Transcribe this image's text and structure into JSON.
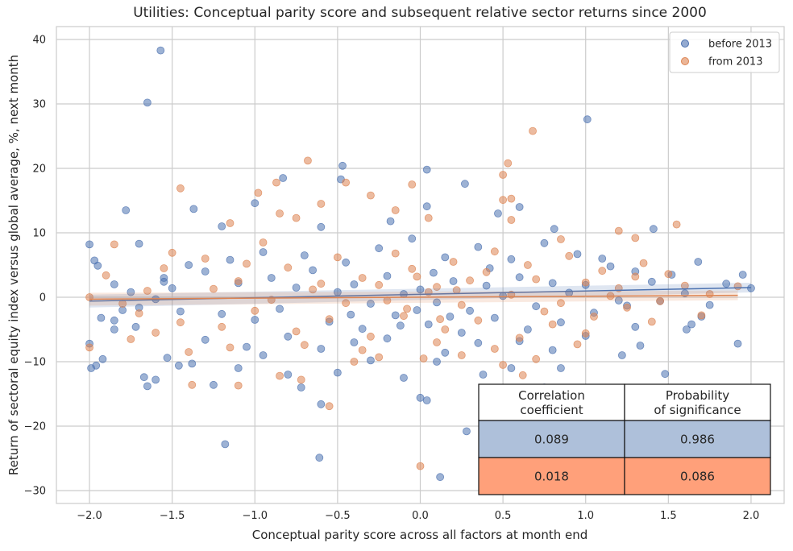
{
  "chart_data": {
    "type": "scatter",
    "title": "Utilities: Conceptual parity score and subsequent relative sector returns since 2000",
    "xlabel": "Conceptual parity score across all factors at month end",
    "ylabel": "Return of sectoral equity index versus global average, %, next month",
    "xlim": [
      -2.2,
      2.2
    ],
    "ylim": [
      -32,
      42
    ],
    "x_ticks": [
      -2.0,
      -1.5,
      -1.0,
      -0.5,
      0.0,
      0.5,
      1.0,
      1.5,
      2.0
    ],
    "x_tick_labels": [
      "−2.0",
      "−1.5",
      "−1.0",
      "−0.5",
      "0.0",
      "0.5",
      "1.0",
      "1.5",
      "2.0"
    ],
    "y_ticks": [
      -30,
      -20,
      -10,
      0,
      10,
      20,
      30,
      40
    ],
    "y_tick_labels": [
      "−30",
      "−20",
      "−10",
      "0",
      "10",
      "20",
      "30",
      "40"
    ],
    "grid": true,
    "legend_position": "top-right",
    "series": [
      {
        "name": "before 2013",
        "color": "#4c72b0",
        "regression": {
          "x": [
            -2.0,
            2.0
          ],
          "y": [
            -0.6,
            1.5
          ]
        },
        "points": [
          [
            -1.57,
            38.3
          ],
          [
            -1.65,
            30.2
          ],
          [
            1.01,
            27.6
          ],
          [
            -0.47,
            20.4
          ],
          [
            0.04,
            19.8
          ],
          [
            -0.48,
            18.3
          ],
          [
            -0.83,
            18.5
          ],
          [
            0.27,
            17.6
          ],
          [
            -1.78,
            13.5
          ],
          [
            -1.37,
            13.7
          ],
          [
            -1.0,
            14.6
          ],
          [
            0.04,
            14.1
          ],
          [
            0.47,
            13.0
          ],
          [
            0.6,
            14.0
          ],
          [
            -0.18,
            11.8
          ],
          [
            -1.2,
            11.0
          ],
          [
            0.81,
            10.6
          ],
          [
            -0.6,
            10.9
          ],
          [
            1.41,
            10.6
          ],
          [
            -2.0,
            8.2
          ],
          [
            -1.7,
            8.3
          ],
          [
            -1.97,
            5.7
          ],
          [
            -1.95,
            4.9
          ],
          [
            -1.85,
            2.0
          ],
          [
            -1.55,
            3.0
          ],
          [
            -1.8,
            -2.0
          ],
          [
            -1.93,
            -3.2
          ],
          [
            -2.0,
            -7.2
          ],
          [
            -1.99,
            -11.0
          ],
          [
            -1.96,
            -10.6
          ],
          [
            -1.92,
            -9.6
          ],
          [
            -1.85,
            -5.0
          ],
          [
            -1.72,
            -4.6
          ],
          [
            -1.67,
            -12.4
          ],
          [
            -1.65,
            -13.8
          ],
          [
            -1.6,
            -12.8
          ],
          [
            -1.53,
            -9.4
          ],
          [
            -1.46,
            -10.6
          ],
          [
            -1.38,
            -10.3
          ],
          [
            -1.25,
            -13.6
          ],
          [
            -1.18,
            -22.8
          ],
          [
            -1.1,
            -11.0
          ],
          [
            -0.95,
            -9.0
          ],
          [
            -0.8,
            -12.0
          ],
          [
            -0.72,
            -14.0
          ],
          [
            -0.6,
            -16.6
          ],
          [
            -0.61,
            -24.9
          ],
          [
            -0.5,
            -11.7
          ],
          [
            -0.3,
            -9.8
          ],
          [
            -0.1,
            -12.5
          ],
          [
            0.0,
            -15.6
          ],
          [
            0.04,
            -16.0
          ],
          [
            0.1,
            -10.0
          ],
          [
            0.12,
            -27.9
          ],
          [
            0.28,
            -20.8
          ],
          [
            0.38,
            -12.0
          ],
          [
            0.55,
            -11.0
          ],
          [
            0.75,
            -14.0
          ],
          [
            0.85,
            -11.0
          ],
          [
            1.48,
            -11.9
          ],
          [
            1.22,
            -9.0
          ],
          [
            1.33,
            -7.5
          ],
          [
            1.64,
            -4.2
          ],
          [
            1.7,
            -3.0
          ],
          [
            1.61,
            -5.0
          ],
          [
            1.92,
            -7.2
          ],
          [
            1.95,
            3.5
          ],
          [
            2.0,
            1.4
          ],
          [
            1.68,
            5.5
          ],
          [
            1.52,
            3.5
          ],
          [
            1.3,
            4.0
          ],
          [
            1.1,
            6.0
          ],
          [
            -1.4,
            5.0
          ],
          [
            -1.3,
            4.0
          ],
          [
            -1.1,
            2.2
          ],
          [
            -0.9,
            3.0
          ],
          [
            -0.75,
            1.5
          ],
          [
            -0.65,
            4.2
          ],
          [
            -0.5,
            0.8
          ],
          [
            -0.4,
            2.0
          ],
          [
            -0.3,
            -1.0
          ],
          [
            -0.2,
            3.3
          ],
          [
            -0.1,
            0.5
          ],
          [
            0.0,
            1.2
          ],
          [
            0.1,
            -0.8
          ],
          [
            0.2,
            2.5
          ],
          [
            0.3,
            -2.1
          ],
          [
            0.4,
            1.8
          ],
          [
            0.5,
            0.2
          ],
          [
            0.6,
            3.1
          ],
          [
            0.7,
            -1.4
          ],
          [
            0.8,
            2.2
          ],
          [
            0.9,
            0.7
          ],
          [
            1.0,
            1.9
          ],
          [
            1.2,
            -0.5
          ],
          [
            1.4,
            2.4
          ],
          [
            -1.6,
            -0.3
          ],
          [
            -1.5,
            1.4
          ],
          [
            -1.2,
            -2.6
          ],
          [
            -1.0,
            -3.5
          ],
          [
            -0.85,
            -1.8
          ],
          [
            -0.55,
            -3.8
          ],
          [
            -0.35,
            -4.9
          ],
          [
            -0.15,
            -2.8
          ],
          [
            0.05,
            -4.2
          ],
          [
            0.25,
            -5.5
          ],
          [
            0.45,
            -3.2
          ],
          [
            0.65,
            -5.0
          ],
          [
            0.85,
            -3.9
          ],
          [
            1.05,
            -2.4
          ],
          [
            1.25,
            -1.3
          ],
          [
            1.45,
            -0.6
          ],
          [
            -1.75,
            0.8
          ],
          [
            -1.45,
            -2.2
          ],
          [
            -1.15,
            5.8
          ],
          [
            -0.95,
            7.0
          ],
          [
            -0.7,
            6.5
          ],
          [
            -0.45,
            5.4
          ],
          [
            -0.25,
            7.6
          ],
          [
            0.15,
            6.2
          ],
          [
            0.35,
            7.8
          ],
          [
            0.55,
            5.9
          ],
          [
            0.75,
            8.4
          ],
          [
            0.95,
            6.7
          ],
          [
            1.15,
            4.8
          ],
          [
            -0.05,
            9.1
          ],
          [
            -1.3,
            -6.6
          ],
          [
            -1.05,
            -7.7
          ],
          [
            -0.8,
            -6.1
          ],
          [
            -0.6,
            -8.0
          ],
          [
            -0.4,
            -7.0
          ],
          [
            -0.2,
            -6.4
          ],
          [
            0.15,
            -8.6
          ],
          [
            0.35,
            -7.1
          ],
          [
            0.6,
            -6.8
          ],
          [
            0.8,
            -8.2
          ],
          [
            1.0,
            -6.0
          ],
          [
            1.3,
            -4.6
          ],
          [
            -1.85,
            -3.6
          ],
          [
            -1.7,
            -1.6
          ],
          [
            -1.55,
            2.4
          ],
          [
            1.6,
            0.6
          ],
          [
            1.75,
            -1.2
          ],
          [
            1.85,
            2.1
          ],
          [
            -0.02,
            -2.0
          ],
          [
            0.08,
            3.8
          ],
          [
            0.18,
            -3.0
          ],
          [
            -0.12,
            -4.4
          ],
          [
            0.42,
            4.5
          ],
          [
            -0.42,
            -2.7
          ]
        ]
      },
      {
        "name": "from 2013",
        "color": "#dd8452",
        "regression": {
          "x": [
            -2.0,
            1.92
          ],
          "y": [
            -0.3,
            0.3
          ]
        },
        "points": [
          [
            0.68,
            25.8
          ],
          [
            -0.68,
            21.2
          ],
          [
            0.53,
            20.8
          ],
          [
            0.5,
            19.0
          ],
          [
            -0.45,
            17.8
          ],
          [
            -0.05,
            17.5
          ],
          [
            -0.87,
            17.8
          ],
          [
            -1.45,
            16.9
          ],
          [
            -0.98,
            16.2
          ],
          [
            -0.3,
            15.8
          ],
          [
            0.5,
            15.1
          ],
          [
            0.55,
            15.3
          ],
          [
            -0.6,
            14.5
          ],
          [
            -0.85,
            13.0
          ],
          [
            -0.15,
            13.5
          ],
          [
            0.55,
            12.0
          ],
          [
            0.05,
            12.3
          ],
          [
            1.55,
            11.3
          ],
          [
            -0.75,
            12.3
          ],
          [
            -1.15,
            11.5
          ],
          [
            0.85,
            9.0
          ],
          [
            1.3,
            9.2
          ],
          [
            1.2,
            10.3
          ],
          [
            -1.85,
            8.2
          ],
          [
            -1.5,
            6.9
          ],
          [
            -1.9,
            3.4
          ],
          [
            -2.0,
            0.0
          ],
          [
            -2.0,
            -7.8
          ],
          [
            -1.75,
            -6.5
          ],
          [
            -1.6,
            -5.5
          ],
          [
            -1.4,
            -8.5
          ],
          [
            -1.38,
            -13.6
          ],
          [
            -1.1,
            -13.7
          ],
          [
            -0.85,
            -12.2
          ],
          [
            -0.72,
            -12.8
          ],
          [
            -0.55,
            -16.9
          ],
          [
            -0.4,
            -10.0
          ],
          [
            -0.25,
            -9.3
          ],
          [
            0.0,
            -26.2
          ],
          [
            0.02,
            -9.5
          ],
          [
            0.25,
            -9.0
          ],
          [
            0.5,
            -10.5
          ],
          [
            0.62,
            -12.1
          ],
          [
            0.7,
            -9.6
          ],
          [
            1.0,
            -5.6
          ],
          [
            1.4,
            -3.8
          ],
          [
            1.7,
            -2.8
          ],
          [
            1.92,
            1.7
          ],
          [
            -1.7,
            -2.5
          ],
          [
            -1.55,
            4.5
          ],
          [
            -1.3,
            6.0
          ],
          [
            -1.1,
            2.5
          ],
          [
            -0.95,
            8.5
          ],
          [
            -0.8,
            4.6
          ],
          [
            -0.65,
            1.2
          ],
          [
            -0.5,
            6.2
          ],
          [
            -0.35,
            3.0
          ],
          [
            -0.2,
            -0.5
          ],
          [
            -0.05,
            4.4
          ],
          [
            0.1,
            1.6
          ],
          [
            0.25,
            -1.2
          ],
          [
            0.4,
            3.9
          ],
          [
            0.55,
            0.4
          ],
          [
            0.7,
            2.8
          ],
          [
            0.85,
            -0.9
          ],
          [
            1.0,
            2.3
          ],
          [
            1.15,
            0.2
          ],
          [
            1.3,
            3.2
          ],
          [
            1.45,
            -0.6
          ],
          [
            1.6,
            1.8
          ],
          [
            -1.8,
            -1.0
          ],
          [
            -1.45,
            -3.9
          ],
          [
            -1.2,
            -4.6
          ],
          [
            -1.0,
            -2.1
          ],
          [
            -0.75,
            -5.3
          ],
          [
            -0.55,
            -3.4
          ],
          [
            -0.3,
            -6.1
          ],
          [
            -0.1,
            -2.9
          ],
          [
            0.15,
            -5.0
          ],
          [
            0.35,
            -3.6
          ],
          [
            0.6,
            -6.3
          ],
          [
            0.8,
            -4.2
          ],
          [
            1.05,
            -3.0
          ],
          [
            1.25,
            -1.6
          ],
          [
            -1.25,
            1.3
          ],
          [
            -0.9,
            -0.4
          ],
          [
            -0.6,
            2.1
          ],
          [
            -0.15,
            6.8
          ],
          [
            0.2,
            5.5
          ],
          [
            0.45,
            7.1
          ],
          [
            0.65,
            5.0
          ],
          [
            0.9,
            6.4
          ],
          [
            1.1,
            4.1
          ],
          [
            -1.05,
            5.2
          ],
          [
            -0.45,
            -0.9
          ],
          [
            0.05,
            0.8
          ],
          [
            0.3,
            2.6
          ],
          [
            -0.25,
            1.9
          ],
          [
            0.75,
            -2.2
          ],
          [
            1.2,
            1.4
          ],
          [
            1.5,
            3.6
          ],
          [
            -1.65,
            1.0
          ],
          [
            -0.7,
            -7.4
          ],
          [
            -0.35,
            -8.2
          ],
          [
            0.1,
            -7.0
          ],
          [
            0.45,
            -8.0
          ],
          [
            0.95,
            -7.3
          ],
          [
            -1.15,
            -7.8
          ],
          [
            1.35,
            5.3
          ],
          [
            1.75,
            0.5
          ],
          [
            -0.02,
            3.2
          ],
          [
            0.12,
            -3.4
          ],
          [
            -0.08,
            -1.8
          ],
          [
            0.22,
            1.1
          ]
        ]
      }
    ],
    "table": {
      "headers": [
        "Correlation\ncoefficient",
        "Probability\nof significance"
      ],
      "rows": [
        {
          "values": [
            "0.089",
            "0.986"
          ],
          "color": "#aec0da"
        },
        {
          "values": [
            "0.018",
            "0.086"
          ],
          "color": "#ffa07a"
        }
      ]
    }
  }
}
